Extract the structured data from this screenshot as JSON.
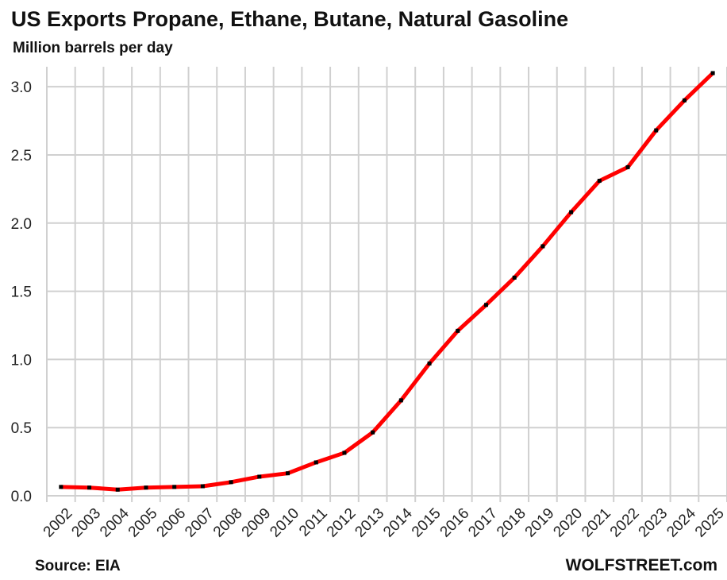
{
  "chart_data": {
    "type": "line",
    "title": "US Exports Propane, Ethane, Butane, Natural Gasoline",
    "subtitle": "Million barrels per day",
    "source": "Source: EIA",
    "credit": "WOLFSTREET.com",
    "categories": [
      "2002",
      "2003",
      "2004",
      "2005",
      "2006",
      "2007",
      "2008",
      "2009",
      "2010",
      "2011",
      "2012",
      "2013",
      "2014",
      "2015",
      "2016",
      "2017",
      "2018",
      "2019",
      "2020",
      "2021",
      "2022",
      "2023",
      "2024",
      "2025"
    ],
    "series": [
      {
        "color": "#ff0000",
        "marker_color": "#000000",
        "values": [
          0.065,
          0.06,
          0.045,
          0.06,
          0.065,
          0.07,
          0.1,
          0.14,
          0.165,
          0.245,
          0.315,
          0.465,
          0.7,
          0.97,
          1.21,
          1.4,
          1.6,
          1.83,
          2.08,
          2.31,
          2.41,
          2.68,
          2.9,
          3.1
        ]
      }
    ],
    "ylim": [
      0,
      3.1
    ],
    "yticks": [
      {
        "value": 0,
        "label": "0.0"
      },
      {
        "value": 0.5,
        "label": "0.5"
      },
      {
        "value": 1,
        "label": "1.0"
      },
      {
        "value": 1.5,
        "label": "1.5"
      },
      {
        "value": 2,
        "label": "2.0"
      },
      {
        "value": 2.5,
        "label": "2.5"
      },
      {
        "value": 3,
        "label": "3.0"
      }
    ],
    "grid": true
  }
}
